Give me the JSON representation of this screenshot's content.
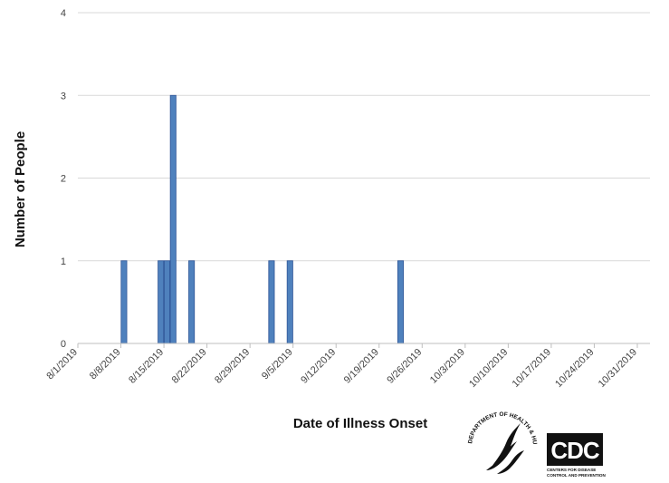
{
  "chart_data": {
    "type": "bar",
    "title": "",
    "xlabel": "Date of Illness Onset",
    "ylabel": "Number of People",
    "x_ticks": [
      "8/1/2019",
      "8/8/2019",
      "8/15/2019",
      "8/22/2019",
      "8/29/2019",
      "9/5/2019",
      "9/12/2019",
      "9/19/2019",
      "9/26/2019",
      "10/3/2019",
      "10/10/2019",
      "10/17/2019",
      "10/24/2019",
      "10/31/2019"
    ],
    "xlim": [
      "8/1/2019",
      "10/31/2019"
    ],
    "ylim": [
      0,
      4
    ],
    "y_ticks": [
      0,
      1,
      2,
      3,
      4
    ],
    "grid": "horizontal",
    "bar_color": "#4f81bd",
    "points": [
      {
        "x": "8/8/2019",
        "y": 1
      },
      {
        "x": "8/14/2019",
        "y": 1
      },
      {
        "x": "8/15/2019",
        "y": 1
      },
      {
        "x": "8/16/2019",
        "y": 3
      },
      {
        "x": "8/19/2019",
        "y": 1
      },
      {
        "x": "9/1/2019",
        "y": 1
      },
      {
        "x": "9/4/2019",
        "y": 1
      },
      {
        "x": "9/22/2019",
        "y": 1
      }
    ]
  },
  "logos": {
    "hhs": "DEPARTMENT OF HEALTH & HUMAN SERVICES USA",
    "cdc": "CDC",
    "cdc_tagline_1": "CENTERS FOR DISEASE",
    "cdc_tagline_2": "CONTROL AND PREVENTION"
  }
}
